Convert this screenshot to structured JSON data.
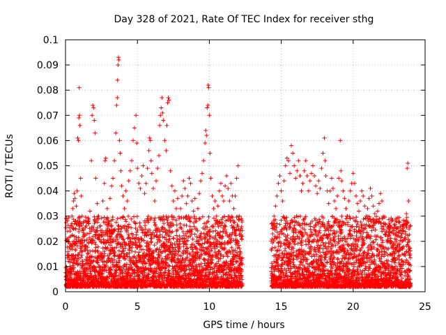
{
  "chart_data": {
    "type": "scatter",
    "title": "Day 328 of 2021, Rate Of TEC Index for receiver sthg",
    "xlabel": "GPS time / hours",
    "ylabel": "ROTI / TECUs",
    "xlim": [
      0,
      25
    ],
    "ylim": [
      0,
      0.1
    ],
    "x_ticks": [
      0,
      5,
      10,
      15,
      20,
      25
    ],
    "x_tick_labels": [
      "0",
      "5",
      "10",
      "15",
      "20",
      "25"
    ],
    "y_ticks": [
      0,
      0.01,
      0.02,
      0.03,
      0.04,
      0.05,
      0.06,
      0.07,
      0.08,
      0.09,
      0.1
    ],
    "y_tick_labels": [
      "0",
      "0.01",
      "0.02",
      "0.03",
      "0.04",
      "0.05",
      "0.06",
      "0.07",
      "0.08",
      "0.09",
      "0.1"
    ],
    "grid": true,
    "marker": "+",
    "marker_color": "#ff0000",
    "data_gap_hours": [
      12.3,
      14.3
    ],
    "series": [
      {
        "points": [
          [
            0.05,
            0.029
          ],
          [
            0.1,
            0.021
          ],
          [
            0.15,
            0.024
          ],
          [
            0.2,
            0.012
          ],
          [
            0.25,
            0.008
          ],
          [
            0.3,
            0.019
          ],
          [
            0.35,
            0.022
          ],
          [
            0.4,
            0.026
          ],
          [
            0.45,
            0.03
          ],
          [
            0.5,
            0.033
          ],
          [
            0.55,
            0.036
          ],
          [
            0.6,
            0.039
          ],
          [
            0.65,
            0.037
          ],
          [
            0.7,
            0.028
          ],
          [
            0.75,
            0.034
          ],
          [
            0.8,
            0.04
          ],
          [
            0.85,
            0.061
          ],
          [
            0.9,
            0.06
          ],
          [
            0.93,
            0.069
          ],
          [
            0.95,
            0.081
          ],
          [
            0.97,
            0.07
          ],
          [
            1.0,
            0.066
          ],
          [
            1.05,
            0.045
          ],
          [
            1.1,
            0.038
          ],
          [
            1.15,
            0.03
          ],
          [
            1.2,
            0.025
          ],
          [
            1.3,
            0.022
          ],
          [
            1.4,
            0.018
          ],
          [
            1.5,
            0.023
          ],
          [
            1.6,
            0.027
          ],
          [
            1.7,
            0.032
          ],
          [
            1.8,
            0.052
          ],
          [
            1.85,
            0.07
          ],
          [
            1.9,
            0.074
          ],
          [
            1.95,
            0.073
          ],
          [
            2.0,
            0.068
          ],
          [
            2.05,
            0.063
          ],
          [
            2.1,
            0.045
          ],
          [
            2.2,
            0.035
          ],
          [
            2.3,
            0.03
          ],
          [
            2.4,
            0.026
          ],
          [
            2.5,
            0.022
          ],
          [
            2.6,
            0.036
          ],
          [
            2.7,
            0.043
          ],
          [
            2.75,
            0.052
          ],
          [
            2.8,
            0.053
          ],
          [
            2.9,
            0.033
          ],
          [
            3.0,
            0.028
          ],
          [
            3.1,
            0.037
          ],
          [
            3.2,
            0.042
          ],
          [
            3.3,
            0.045
          ],
          [
            3.4,
            0.052
          ],
          [
            3.5,
            0.063
          ],
          [
            3.55,
            0.074
          ],
          [
            3.6,
            0.077
          ],
          [
            3.62,
            0.084
          ],
          [
            3.65,
            0.09
          ],
          [
            3.68,
            0.093
          ],
          [
            3.7,
            0.092
          ],
          [
            3.75,
            0.06
          ],
          [
            3.8,
            0.055
          ],
          [
            3.85,
            0.048
          ],
          [
            3.9,
            0.042
          ],
          [
            4.0,
            0.038
          ],
          [
            4.1,
            0.033
          ],
          [
            4.2,
            0.04
          ],
          [
            4.3,
            0.036
          ],
          [
            4.4,
            0.044
          ],
          [
            4.5,
            0.048
          ],
          [
            4.6,
            0.052
          ],
          [
            4.7,
            0.06
          ],
          [
            4.8,
            0.065
          ],
          [
            4.9,
            0.07
          ],
          [
            4.95,
            0.059
          ],
          [
            5.0,
            0.049
          ],
          [
            5.1,
            0.043
          ],
          [
            5.2,
            0.041
          ],
          [
            5.3,
            0.046
          ],
          [
            5.4,
            0.05
          ],
          [
            5.5,
            0.039
          ],
          [
            5.6,
            0.043
          ],
          [
            5.7,
            0.049
          ],
          [
            5.8,
            0.056
          ],
          [
            5.85,
            0.061
          ],
          [
            5.9,
            0.06
          ],
          [
            5.95,
            0.052
          ],
          [
            6.0,
            0.047
          ],
          [
            6.1,
            0.041
          ],
          [
            6.2,
            0.036
          ],
          [
            6.3,
            0.044
          ],
          [
            6.4,
            0.049
          ],
          [
            6.5,
            0.054
          ],
          [
            6.55,
            0.066
          ],
          [
            6.6,
            0.07
          ],
          [
            6.65,
            0.073
          ],
          [
            6.7,
            0.077
          ],
          [
            6.75,
            0.071
          ],
          [
            6.8,
            0.068
          ],
          [
            6.9,
            0.06
          ],
          [
            7.0,
            0.056
          ],
          [
            7.05,
            0.066
          ],
          [
            7.1,
            0.075
          ],
          [
            7.15,
            0.077
          ],
          [
            7.2,
            0.076
          ],
          [
            7.3,
            0.048
          ],
          [
            7.4,
            0.042
          ],
          [
            7.5,
            0.036
          ],
          [
            7.6,
            0.04
          ],
          [
            7.7,
            0.033
          ],
          [
            7.8,
            0.037
          ],
          [
            7.9,
            0.029
          ],
          [
            8.0,
            0.033
          ],
          [
            8.1,
            0.038
          ],
          [
            8.2,
            0.044
          ],
          [
            8.3,
            0.041
          ],
          [
            8.4,
            0.035
          ],
          [
            8.5,
            0.038
          ],
          [
            8.6,
            0.045
          ],
          [
            8.7,
            0.043
          ],
          [
            8.8,
            0.036
          ],
          [
            8.9,
            0.032
          ],
          [
            9.0,
            0.037
          ],
          [
            9.1,
            0.029
          ],
          [
            9.2,
            0.033
          ],
          [
            9.3,
            0.039
          ],
          [
            9.4,
            0.044
          ],
          [
            9.5,
            0.047
          ],
          [
            9.6,
            0.052
          ],
          [
            9.7,
            0.059
          ],
          [
            9.75,
            0.064
          ],
          [
            9.8,
            0.062
          ],
          [
            9.85,
            0.073
          ],
          [
            9.9,
            0.074
          ],
          [
            9.92,
            0.082
          ],
          [
            9.95,
            0.081
          ],
          [
            10.0,
            0.07
          ],
          [
            10.05,
            0.055
          ],
          [
            10.1,
            0.045
          ],
          [
            10.2,
            0.038
          ],
          [
            10.3,
            0.033
          ],
          [
            10.4,
            0.036
          ],
          [
            10.5,
            0.03
          ],
          [
            10.6,
            0.034
          ],
          [
            10.7,
            0.04
          ],
          [
            10.8,
            0.043
          ],
          [
            10.9,
            0.038
          ],
          [
            11.0,
            0.036
          ],
          [
            11.1,
            0.042
          ],
          [
            11.2,
            0.046
          ],
          [
            11.3,
            0.041
          ],
          [
            11.4,
            0.036
          ],
          [
            11.5,
            0.043
          ],
          [
            11.6,
            0.038
          ],
          [
            11.7,
            0.033
          ],
          [
            11.8,
            0.038
          ],
          [
            11.9,
            0.045
          ],
          [
            12.0,
            0.05
          ],
          [
            12.1,
            0.03
          ],
          [
            12.2,
            0.025
          ],
          [
            12.25,
            0.021
          ],
          [
            14.35,
            0.027
          ],
          [
            14.4,
            0.023
          ],
          [
            14.5,
            0.03
          ],
          [
            14.6,
            0.034
          ],
          [
            14.7,
            0.038
          ],
          [
            14.8,
            0.043
          ],
          [
            14.9,
            0.046
          ],
          [
            15.0,
            0.04
          ],
          [
            15.1,
            0.036
          ],
          [
            15.2,
            0.044
          ],
          [
            15.3,
            0.05
          ],
          [
            15.4,
            0.053
          ],
          [
            15.5,
            0.052
          ],
          [
            15.6,
            0.047
          ],
          [
            15.7,
            0.058
          ],
          [
            15.8,
            0.055
          ],
          [
            15.9,
            0.05
          ],
          [
            16.0,
            0.045
          ],
          [
            16.1,
            0.048
          ],
          [
            16.2,
            0.052
          ],
          [
            16.3,
            0.046
          ],
          [
            16.4,
            0.04
          ],
          [
            16.5,
            0.043
          ],
          [
            16.6,
            0.048
          ],
          [
            16.7,
            0.052
          ],
          [
            16.8,
            0.046
          ],
          [
            16.9,
            0.04
          ],
          [
            17.0,
            0.044
          ],
          [
            17.1,
            0.047
          ],
          [
            17.2,
            0.05
          ],
          [
            17.3,
            0.046
          ],
          [
            17.4,
            0.042
          ],
          [
            17.5,
            0.039
          ],
          [
            17.6,
            0.044
          ],
          [
            17.7,
            0.041
          ],
          [
            17.8,
            0.049
          ],
          [
            17.9,
            0.055
          ],
          [
            18.0,
            0.061
          ],
          [
            18.05,
            0.052
          ],
          [
            18.1,
            0.046
          ],
          [
            18.2,
            0.04
          ],
          [
            18.3,
            0.035
          ],
          [
            18.4,
            0.04
          ],
          [
            18.5,
            0.045
          ],
          [
            18.6,
            0.041
          ],
          [
            18.7,
            0.036
          ],
          [
            18.8,
            0.033
          ],
          [
            18.9,
            0.038
          ],
          [
            19.0,
            0.045
          ],
          [
            19.1,
            0.06
          ],
          [
            19.15,
            0.048
          ],
          [
            19.2,
            0.044
          ],
          [
            19.3,
            0.04
          ],
          [
            19.4,
            0.037
          ],
          [
            19.5,
            0.033
          ],
          [
            19.6,
            0.03
          ],
          [
            19.7,
            0.036
          ],
          [
            19.8,
            0.04
          ],
          [
            19.9,
            0.043
          ],
          [
            20.0,
            0.047
          ],
          [
            20.1,
            0.043
          ],
          [
            20.2,
            0.038
          ],
          [
            20.3,
            0.035
          ],
          [
            20.4,
            0.032
          ],
          [
            20.5,
            0.036
          ],
          [
            20.6,
            0.04
          ],
          [
            20.7,
            0.038
          ],
          [
            20.8,
            0.034
          ],
          [
            20.9,
            0.03
          ],
          [
            21.0,
            0.033
          ],
          [
            21.1,
            0.037
          ],
          [
            21.2,
            0.041
          ],
          [
            21.3,
            0.038
          ],
          [
            21.4,
            0.034
          ],
          [
            21.5,
            0.031
          ],
          [
            21.6,
            0.028
          ],
          [
            21.7,
            0.032
          ],
          [
            21.8,
            0.035
          ],
          [
            21.9,
            0.039
          ],
          [
            22.0,
            0.036
          ],
          [
            22.1,
            0.03
          ],
          [
            22.2,
            0.027
          ],
          [
            22.3,
            0.024
          ],
          [
            22.4,
            0.022
          ],
          [
            22.5,
            0.026
          ],
          [
            22.6,
            0.02
          ],
          [
            22.7,
            0.018
          ],
          [
            22.8,
            0.016
          ],
          [
            22.9,
            0.021
          ],
          [
            23.0,
            0.025
          ],
          [
            23.1,
            0.022
          ],
          [
            23.2,
            0.019
          ],
          [
            23.3,
            0.017
          ],
          [
            23.4,
            0.02
          ],
          [
            23.5,
            0.024
          ],
          [
            23.6,
            0.028
          ],
          [
            23.7,
            0.031
          ],
          [
            23.75,
            0.049
          ],
          [
            23.8,
            0.051
          ],
          [
            23.85,
            0.036
          ],
          [
            23.9,
            0.02
          ],
          [
            23.95,
            0.015
          ]
        ]
      }
    ]
  }
}
